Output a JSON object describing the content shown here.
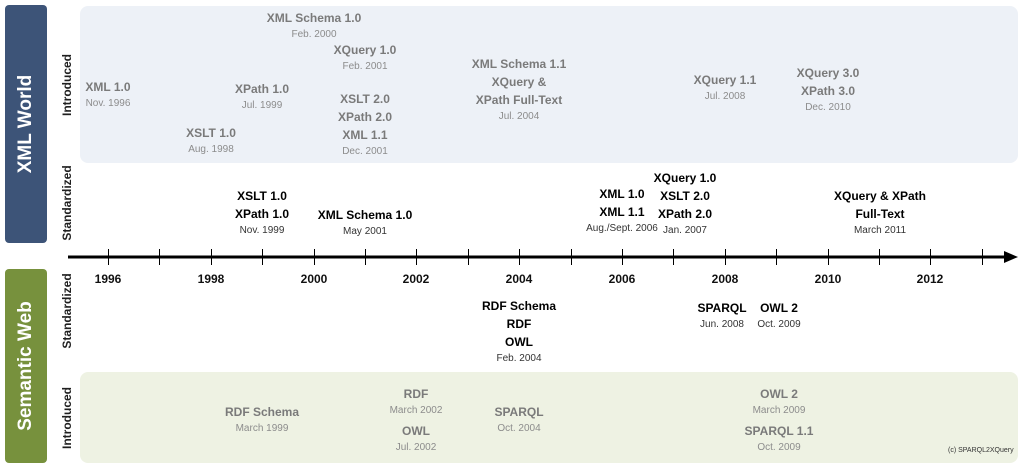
{
  "sides": {
    "xml_world": "XML World",
    "semantic_web": "Semantic Web"
  },
  "row_labels": {
    "xml_introduced": "Introduced",
    "xml_standardized": "Standardized",
    "sem_standardized": "Standardized",
    "sem_introduced": "Introduced"
  },
  "years": [
    "1996",
    "1998",
    "2000",
    "2002",
    "2004",
    "2006",
    "2008",
    "2010",
    "2012"
  ],
  "xml_introduced": [
    {
      "lines": [
        "XML 1.0"
      ],
      "date": "Nov. 1996"
    },
    {
      "lines": [
        "XSLT 1.0"
      ],
      "date": "Aug. 1998"
    },
    {
      "lines": [
        "XPath 1.0"
      ],
      "date": "Jul. 1999"
    },
    {
      "lines": [
        "XML Schema 1.0"
      ],
      "date": "Feb. 2000"
    },
    {
      "lines": [
        "XQuery 1.0"
      ],
      "date": "Feb. 2001"
    },
    {
      "lines": [
        "XSLT 2.0",
        "XPath 2.0",
        "XML 1.1"
      ],
      "date": "Dec. 2001"
    },
    {
      "lines": [
        "XML Schema 1.1",
        "XQuery &",
        "XPath Full-Text"
      ],
      "date": "Jul. 2004"
    },
    {
      "lines": [
        "XQuery 1.1"
      ],
      "date": "Jul. 2008"
    },
    {
      "lines": [
        "XQuery 3.0",
        "XPath 3.0"
      ],
      "date": "Dec. 2010"
    }
  ],
  "xml_standardized": [
    {
      "lines": [
        "XSLT 1.0",
        "XPath 1.0"
      ],
      "date": "Nov. 1999"
    },
    {
      "lines": [
        "XML Schema 1.0"
      ],
      "date": "May 2001"
    },
    {
      "lines": [
        "XML 1.0",
        "XML 1.1"
      ],
      "date": "Aug./Sept. 2006"
    },
    {
      "lines": [
        "XQuery 1.0",
        "XSLT 2.0",
        "XPath 2.0"
      ],
      "date": "Jan. 2007"
    },
    {
      "lines": [
        "XQuery & XPath",
        "Full-Text"
      ],
      "date": "March 2011"
    }
  ],
  "sem_standardized": [
    {
      "lines": [
        "RDF Schema",
        "RDF",
        "OWL"
      ],
      "date": "Feb. 2004"
    },
    {
      "lines": [
        "SPARQL"
      ],
      "date": "Jun. 2008"
    },
    {
      "lines": [
        "OWL 2"
      ],
      "date": "Oct. 2009"
    }
  ],
  "sem_introduced": [
    {
      "lines": [
        "RDF Schema"
      ],
      "date": "March 1999"
    },
    {
      "lines": [
        "RDF"
      ],
      "date": "March 2002"
    },
    {
      "lines": [
        "OWL"
      ],
      "date": "Jul. 2002"
    },
    {
      "lines": [
        "SPARQL"
      ],
      "date": "Oct. 2004"
    },
    {
      "lines": [
        "OWL 2"
      ],
      "date": "March 2009"
    },
    {
      "lines": [
        "SPARQL 1.1"
      ],
      "date": "Oct. 2009"
    }
  ],
  "copyright": "(c) SPARQL2XQuery",
  "colors": {
    "xml_side": "#3d5478",
    "sem_side": "#77913d",
    "xml_panel": "#edf1f7",
    "sem_panel": "#eef2e3"
  }
}
